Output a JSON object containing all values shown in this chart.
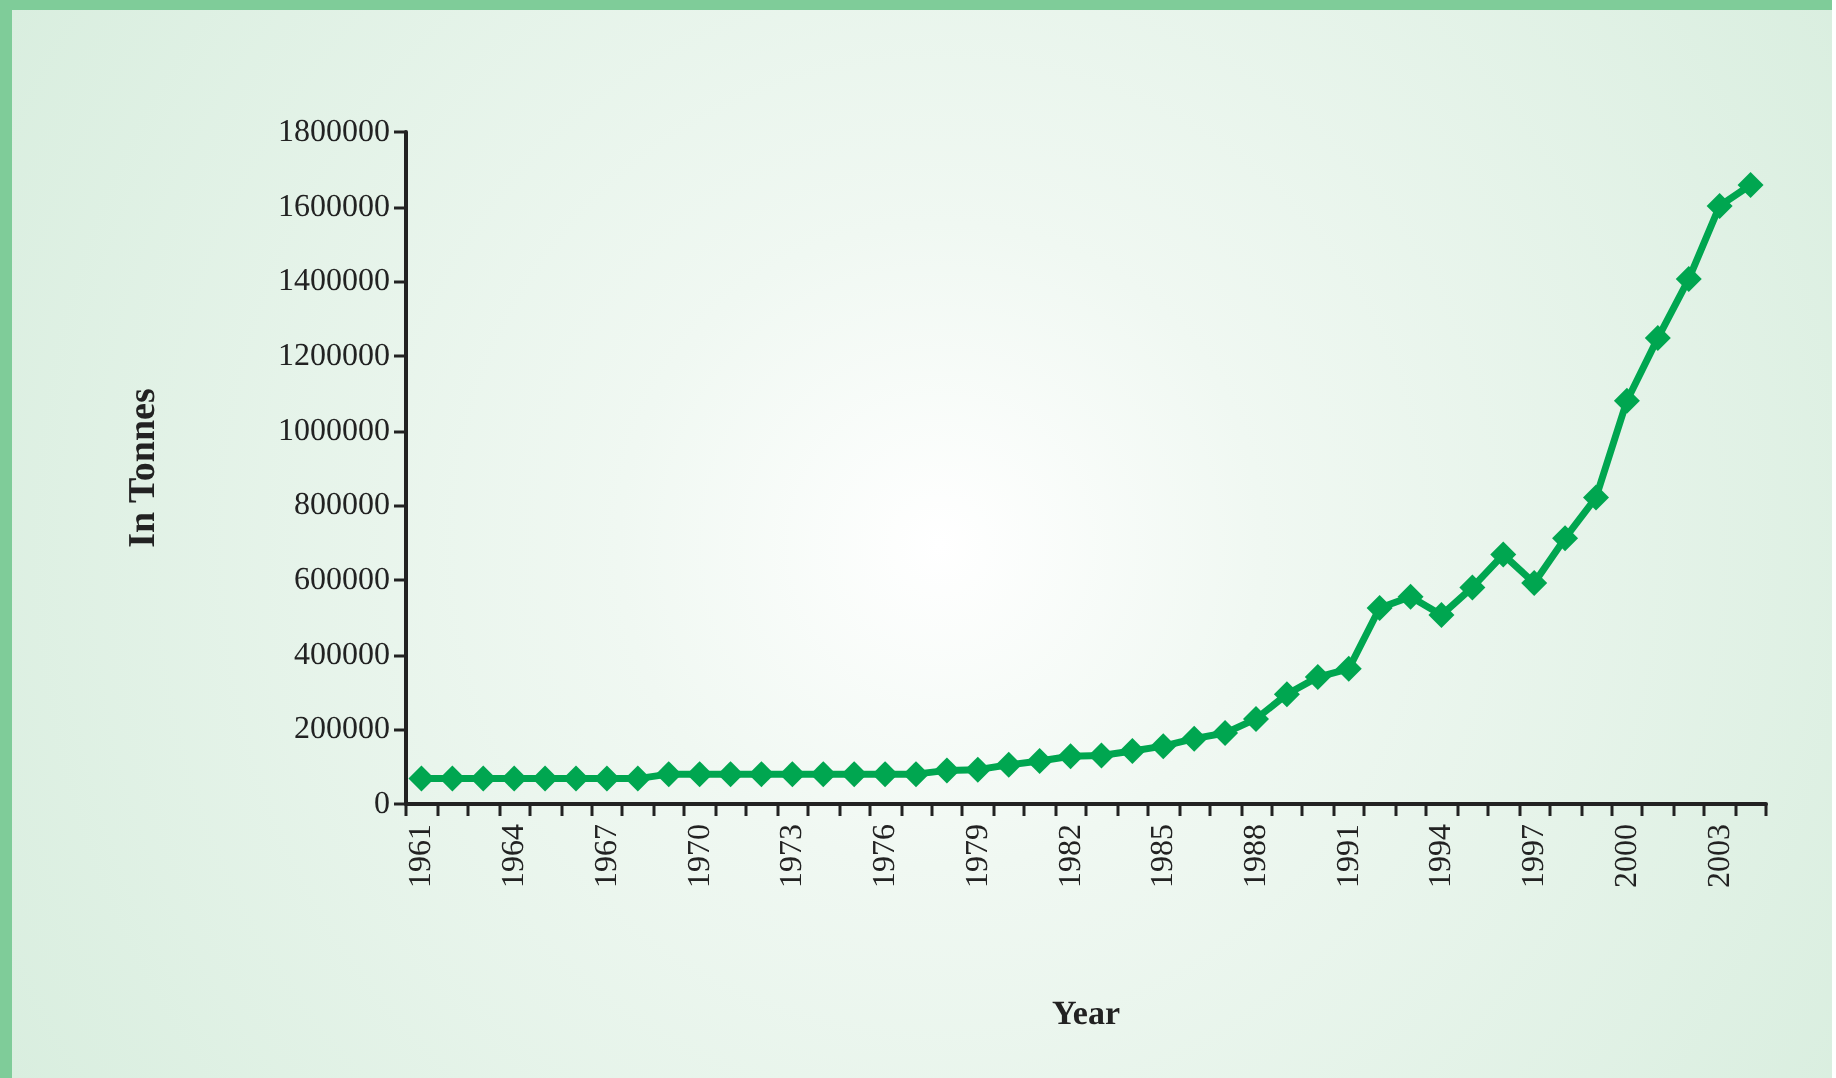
{
  "chart_data": {
    "type": "line",
    "xlabel": "Year",
    "ylabel": "In Tonnes",
    "categories": [
      "1961",
      null,
      null,
      "1964",
      null,
      null,
      "1967",
      null,
      null,
      "1970",
      null,
      null,
      "1973",
      null,
      null,
      "1976",
      null,
      null,
      "1979",
      null,
      null,
      "1982",
      null,
      null,
      "1985",
      null,
      null,
      "1988",
      null,
      null,
      "1991",
      null,
      null,
      "1994",
      null,
      null,
      "1997",
      null,
      null,
      "2000",
      null,
      null,
      "2003",
      null
    ],
    "series": [
      {
        "color": "#00a650",
        "values": [
          68000,
          68000,
          68000,
          68000,
          68000,
          68000,
          68000,
          68000,
          80000,
          80000,
          80000,
          80000,
          80000,
          80000,
          80000,
          80000,
          80000,
          90000,
          92000,
          105000,
          115000,
          128000,
          130000,
          142000,
          155000,
          175000,
          190000,
          228000,
          294000,
          340000,
          362000,
          525000,
          555000,
          506000,
          580000,
          668000,
          592000,
          712000,
          821000,
          1080000,
          1248000,
          1406000,
          1602000,
          1658000
        ]
      }
    ],
    "ylim": [
      0,
      1800000
    ],
    "yticks": [
      0,
      200000,
      400000,
      600000,
      800000,
      1000000,
      1200000,
      1400000,
      1600000,
      1800000
    ],
    "grid": false,
    "marker": "diamond",
    "line_style": "solid"
  }
}
